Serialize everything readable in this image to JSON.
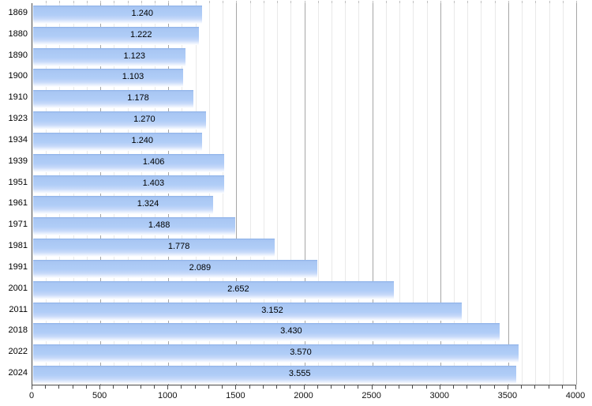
{
  "chart_data": {
    "type": "bar",
    "orientation": "horizontal",
    "title": "",
    "categories": [
      "1869",
      "1880",
      "1890",
      "1900",
      "1910",
      "1923",
      "1934",
      "1939",
      "1951",
      "1961",
      "1971",
      "1981",
      "1991",
      "2001",
      "2011",
      "2018",
      "2022",
      "2024"
    ],
    "values": [
      1240,
      1222,
      1123,
      1103,
      1178,
      1270,
      1240,
      1406,
      1403,
      1324,
      1488,
      1778,
      2089,
      2652,
      3152,
      3430,
      3570,
      3555
    ],
    "value_labels": [
      "1.240",
      "1.222",
      "1.123",
      "1.103",
      "1.178",
      "1.270",
      "1.240",
      "1.406",
      "1.403",
      "1.324",
      "1.488",
      "1.778",
      "2.089",
      "2.652",
      "3.152",
      "3.430",
      "3.570",
      "3.555"
    ],
    "xlabel": "",
    "ylabel": "",
    "xlim": [
      0,
      4000
    ],
    "x_tick_labels": [
      "0",
      "500",
      "1000",
      "1500",
      "2000",
      "2500",
      "3000",
      "3500",
      "4000"
    ],
    "x_major_tick_step": 500,
    "x_minor_tick_step": 100,
    "grid": true,
    "legend": false,
    "colors": {
      "bar_fill": "#aecbf6",
      "bar_top_edge": "#8db1e7",
      "bar_fade_bottom": "#ffffff",
      "grid_minor": "#e9e9e9",
      "grid_major": "#a6a6a6",
      "axis": "#4a4a4a",
      "text": "#000000",
      "background": "#ffffff"
    }
  }
}
